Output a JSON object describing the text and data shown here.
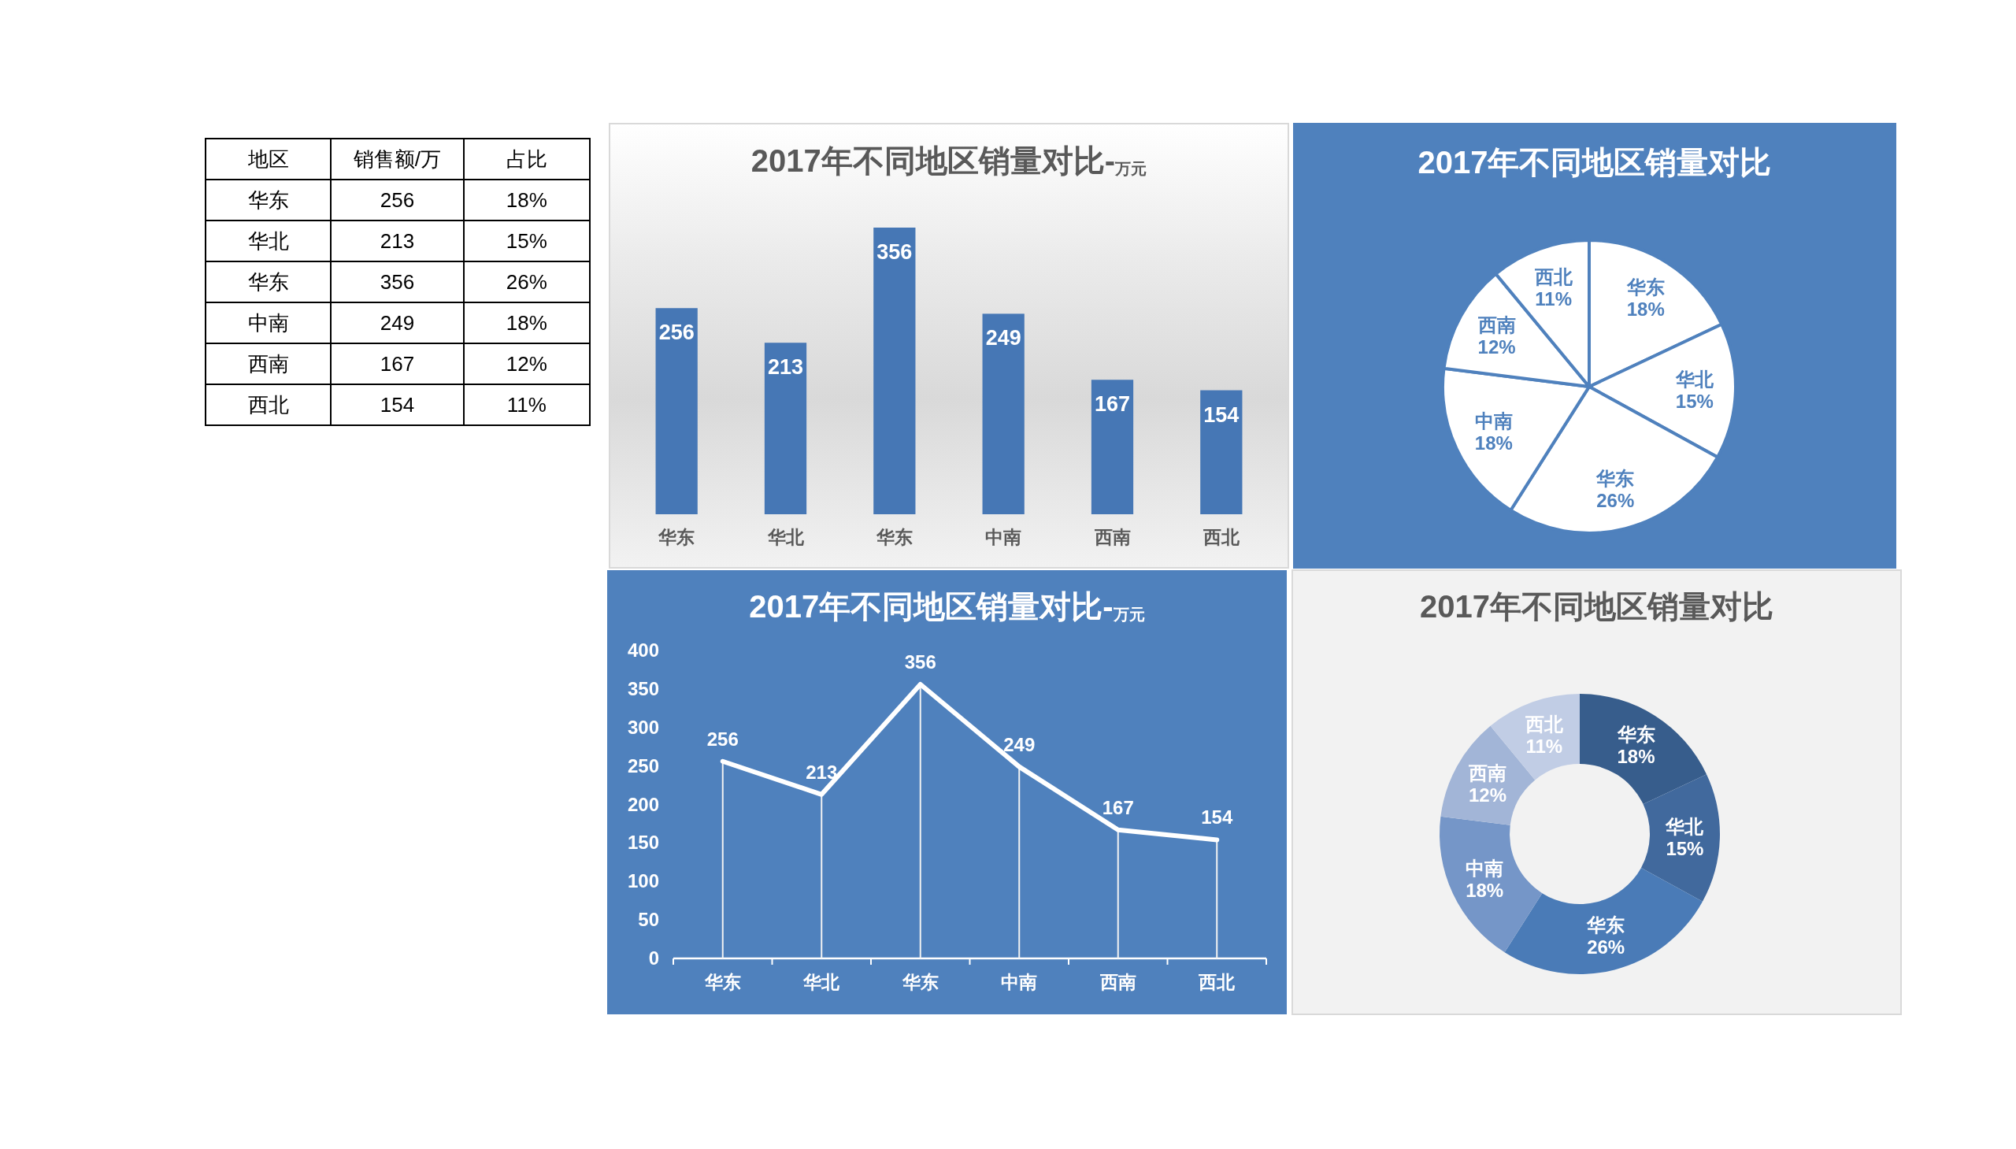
{
  "chart_data": [
    {
      "type": "other",
      "xlabel": "地区",
      "categories": [
        "华东",
        "华北",
        "华东",
        "中南",
        "西南",
        "西北"
      ],
      "series": [
        {
          "name": "销售额/万",
          "values": [
            256,
            213,
            356,
            249,
            167,
            154
          ]
        },
        {
          "name": "占比",
          "values": [
            18,
            15,
            26,
            18,
            12,
            11
          ],
          "value_labels": [
            "18%",
            "15%",
            "26%",
            "18%",
            "12%",
            "11%"
          ]
        }
      ],
      "data_labels": true
    },
    {
      "type": "bar",
      "title": "2017年不同地区销量对比-$_{万元}$",
      "categories": [
        "华东",
        "华北",
        "华东",
        "中南",
        "西南",
        "西北"
      ],
      "values": [
        256,
        213,
        356,
        249,
        167,
        154
      ],
      "color": "#4677b5",
      "data_labels": true
    },
    {
      "type": "pie",
      "title": "2017年不同地区销量对比",
      "categories": [
        "华东",
        "华北",
        "华东",
        "中南",
        "西南",
        "西北"
      ],
      "values": [
        18,
        15,
        26,
        18,
        12,
        11
      ],
      "colors": [
        "#ffffff",
        "#ffffff",
        "#ffffff",
        "#ffffff",
        "#ffffff",
        "#ffffff"
      ],
      "value_labels": [
        "18%",
        "15%",
        "26%",
        "18%",
        "12%",
        "11%"
      ]
    },
    {
      "type": "line",
      "title": "2017年不同地区销量对比-$_{万元}$",
      "categories": [
        "华东",
        "华北",
        "华东",
        "中南",
        "西南",
        "西北"
      ],
      "ylim": [
        0,
        400
      ],
      "yticks": [
        0,
        50,
        100,
        150,
        200,
        250,
        300,
        350,
        400
      ],
      "marker": "none",
      "series": [
        {
          "type": "bar",
          "color": "#f2f2f2",
          "values": [
            256,
            213,
            356,
            249,
            167,
            154
          ]
        },
        {
          "type": "line",
          "color": "#ffffff",
          "values": [
            256,
            213,
            356,
            249,
            167,
            154
          ],
          "value_labels": [
            "256",
            "213",
            "356",
            "249",
            "167",
            "154"
          ]
        }
      ]
    },
    {
      "type": "donut",
      "title": "2017年不同地区销量对比",
      "categories": [
        "华东",
        "华北",
        "华东",
        "中南",
        "西南",
        "西北"
      ],
      "values": [
        18,
        15,
        26,
        18,
        12,
        11
      ],
      "colors": [
        "#375d8c",
        "#41699d",
        "#4a7bb7",
        "#7596c8",
        "#a2b5d7",
        "#c1cde5"
      ],
      "value_labels": [
        "18%",
        "15%",
        "26%",
        "18%",
        "12%",
        "11%"
      ]
    }
  ]
}
